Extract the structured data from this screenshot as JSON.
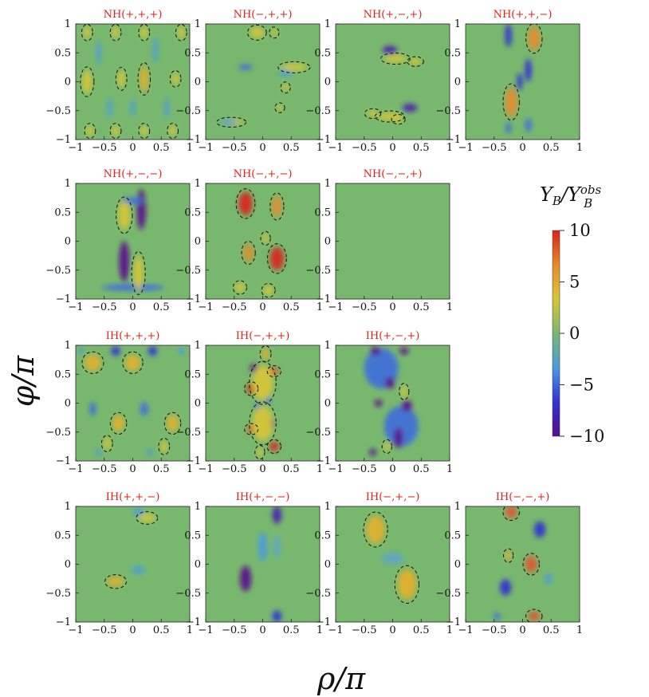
{
  "figure": {
    "colorbar_label": "Y_B/Y_B^obs",
    "xlabel": "ρ/π",
    "ylabel": "φ/π"
  },
  "chart_data": {
    "type": "heatmap",
    "title": "",
    "xlabel": "ρ/π",
    "ylabel": "φ/π",
    "xlim": [
      -1,
      1
    ],
    "ylim": [
      -1,
      1
    ],
    "x_ticks": [
      "−1",
      "−0.5",
      "0",
      "0.5",
      "1"
    ],
    "y_ticks": [
      "1",
      "0.5",
      "0",
      "−0.5",
      "−1"
    ],
    "colorbar": {
      "label": "Y_B/Y_B^obs",
      "range": [
        -10,
        10
      ],
      "ticks": [
        "10",
        "5",
        "0",
        "−5",
        "−10"
      ],
      "colors": [
        "#5a0c8c",
        "#3232d2",
        "#4a9bde",
        "#78b86e",
        "#d8c637",
        "#e88a2a",
        "#d9231c"
      ]
    },
    "contour_note": "dashed contours enclose Y_B/Y_B^obs = 1",
    "panels": [
      {
        "title": "NH(+,+,+)",
        "blobs": [
          [
            -0.8,
            0.85,
            0.06,
            0.1,
            3
          ],
          [
            -0.3,
            0.85,
            0.06,
            0.1,
            3
          ],
          [
            0.2,
            0.85,
            0.06,
            0.1,
            3
          ],
          [
            0.85,
            0.85,
            0.06,
            0.1,
            3
          ],
          [
            -0.8,
            0.0,
            0.08,
            0.2,
            3
          ],
          [
            0.2,
            0.05,
            0.07,
            0.22,
            4
          ],
          [
            -0.2,
            0.05,
            0.06,
            0.15,
            2
          ],
          [
            0.75,
            0.05,
            0.06,
            0.1,
            2
          ],
          [
            -0.75,
            -0.85,
            0.06,
            0.09,
            3
          ],
          [
            -0.3,
            -0.85,
            0.06,
            0.09,
            3
          ],
          [
            0.2,
            -0.85,
            0.06,
            0.09,
            3
          ],
          [
            0.7,
            -0.85,
            0.06,
            0.09,
            3
          ],
          [
            -0.6,
            0.5,
            0.04,
            0.22,
            -3
          ],
          [
            0.4,
            0.55,
            0.04,
            0.22,
            -3
          ],
          [
            -0.4,
            -0.45,
            0.04,
            0.18,
            -3
          ],
          [
            0.6,
            -0.45,
            0.04,
            0.18,
            -3
          ],
          [
            0.0,
            -0.45,
            0.04,
            0.15,
            -2
          ]
        ]
      },
      {
        "title": "NH(−,+,+)",
        "blobs": [
          [
            -0.1,
            0.85,
            0.12,
            0.09,
            3
          ],
          [
            0.2,
            0.85,
            0.05,
            0.06,
            2
          ],
          [
            0.55,
            0.25,
            0.22,
            0.06,
            3
          ],
          [
            0.4,
            -0.1,
            0.05,
            0.06,
            2
          ],
          [
            -0.55,
            -0.7,
            0.2,
            0.05,
            3
          ],
          [
            -0.3,
            0.25,
            0.12,
            0.05,
            -4
          ],
          [
            0.4,
            0.15,
            0.12,
            0.05,
            -3
          ],
          [
            -0.6,
            -0.7,
            0.15,
            0.04,
            -3
          ],
          [
            0.3,
            -0.45,
            0.05,
            0.05,
            2
          ]
        ]
      },
      {
        "title": "NH(+,−,+)",
        "blobs": [
          [
            -0.05,
            0.55,
            0.13,
            0.07,
            -7
          ],
          [
            0.05,
            0.4,
            0.2,
            0.06,
            3
          ],
          [
            0.4,
            0.35,
            0.1,
            0.05,
            2
          ],
          [
            0.3,
            -0.45,
            0.13,
            0.07,
            -7
          ],
          [
            -0.05,
            -0.6,
            0.2,
            0.06,
            3
          ],
          [
            -0.35,
            -0.55,
            0.1,
            0.05,
            2
          ],
          [
            0.1,
            -0.65,
            0.08,
            0.05,
            3
          ]
        ]
      },
      {
        "title": "NH(+,+,−)",
        "blobs": [
          [
            -0.25,
            0.8,
            0.06,
            0.2,
            -6
          ],
          [
            0.2,
            0.75,
            0.1,
            0.2,
            6
          ],
          [
            0.1,
            0.2,
            0.06,
            0.2,
            -5
          ],
          [
            -0.2,
            -0.35,
            0.1,
            0.25,
            6
          ],
          [
            -0.05,
            0.0,
            0.05,
            0.15,
            -5
          ],
          [
            0.1,
            -0.75,
            0.06,
            0.12,
            -4
          ],
          [
            -0.25,
            -0.8,
            0.05,
            0.1,
            -4
          ]
        ]
      },
      {
        "title": "NH(+,−,−)",
        "blobs": [
          [
            0.15,
            0.55,
            0.08,
            0.35,
            -9
          ],
          [
            -0.15,
            -0.35,
            0.09,
            0.35,
            -9
          ],
          [
            0.0,
            -0.8,
            0.55,
            0.06,
            -4
          ],
          [
            0.0,
            0.7,
            0.2,
            0.06,
            -4
          ],
          [
            -0.15,
            0.45,
            0.1,
            0.25,
            3
          ],
          [
            0.1,
            -0.55,
            0.08,
            0.3,
            3
          ]
        ]
      },
      {
        "title": "NH(−,+,−)",
        "blobs": [
          [
            -0.3,
            0.65,
            0.12,
            0.2,
            9
          ],
          [
            0.25,
            0.6,
            0.08,
            0.18,
            5
          ],
          [
            0.25,
            -0.3,
            0.12,
            0.2,
            9
          ],
          [
            -0.25,
            -0.2,
            0.08,
            0.15,
            5
          ],
          [
            -0.4,
            -0.8,
            0.08,
            0.08,
            3
          ],
          [
            0.1,
            -0.85,
            0.08,
            0.08,
            3
          ],
          [
            0.05,
            0.05,
            0.05,
            0.08,
            2
          ]
        ]
      },
      {
        "title": "NH(−,−,+)",
        "blobs": []
      },
      {
        "title": "IH(+,+,+)",
        "blobs": [
          [
            -0.7,
            0.7,
            0.14,
            0.14,
            4
          ],
          [
            0.0,
            0.7,
            0.13,
            0.14,
            4
          ],
          [
            -0.25,
            -0.35,
            0.1,
            0.14,
            4
          ],
          [
            0.7,
            -0.35,
            0.1,
            0.14,
            4
          ],
          [
            -0.3,
            0.9,
            0.08,
            0.08,
            -5
          ],
          [
            0.35,
            0.9,
            0.08,
            0.08,
            -5
          ],
          [
            -0.7,
            -0.1,
            0.06,
            0.12,
            -4
          ],
          [
            0.2,
            -0.1,
            0.07,
            0.12,
            -4
          ],
          [
            -0.45,
            -0.7,
            0.06,
            0.1,
            3
          ],
          [
            0.55,
            -0.75,
            0.06,
            0.1,
            3
          ],
          [
            -0.6,
            -0.85,
            0.05,
            0.06,
            -3
          ],
          [
            0.3,
            -0.85,
            0.05,
            0.06,
            -3
          ],
          [
            0.85,
            0.9,
            0.06,
            0.06,
            -3
          ],
          [
            -0.9,
            0.9,
            0.05,
            0.05,
            -3
          ]
        ]
      },
      {
        "title": "IH(−,+,+)",
        "blobs": [
          [
            -0.15,
            0.6,
            0.07,
            0.08,
            -10
          ],
          [
            0.2,
            0.55,
            0.08,
            0.06,
            8
          ],
          [
            -0.2,
            0.25,
            0.08,
            0.08,
            9
          ],
          [
            0.0,
            0.35,
            0.18,
            0.3,
            3
          ],
          [
            0.15,
            -0.35,
            0.07,
            0.08,
            -10
          ],
          [
            -0.2,
            -0.45,
            0.08,
            0.06,
            8
          ],
          [
            0.2,
            -0.75,
            0.08,
            0.08,
            9
          ],
          [
            0.0,
            -0.35,
            0.18,
            0.3,
            3
          ],
          [
            0.05,
            0.85,
            0.06,
            0.1,
            4
          ],
          [
            -0.05,
            -0.85,
            0.05,
            0.08,
            3
          ],
          [
            0.1,
            0.05,
            0.05,
            0.05,
            -4
          ],
          [
            -0.1,
            -0.05,
            0.05,
            0.05,
            -4
          ]
        ]
      },
      {
        "title": "IH(+,−,+)",
        "blobs": [
          [
            -0.2,
            0.6,
            0.3,
            0.35,
            -4
          ],
          [
            0.15,
            -0.4,
            0.3,
            0.35,
            -4
          ],
          [
            -0.3,
            0.9,
            0.09,
            0.07,
            -9
          ],
          [
            0.2,
            0.9,
            0.08,
            0.06,
            -9
          ],
          [
            -0.05,
            0.35,
            0.08,
            0.1,
            -9
          ],
          [
            -0.25,
            0.0,
            0.07,
            0.06,
            -9
          ],
          [
            0.25,
            -0.05,
            0.09,
            0.1,
            -9
          ],
          [
            0.1,
            -0.6,
            0.08,
            0.18,
            -9
          ],
          [
            -0.35,
            -0.85,
            0.06,
            0.06,
            -9
          ],
          [
            0.2,
            0.2,
            0.05,
            0.1,
            3
          ],
          [
            -0.1,
            -0.75,
            0.05,
            0.08,
            2
          ]
        ]
      },
      {
        "title": "IH(+,+,−)",
        "blobs": [
          [
            0.25,
            0.8,
            0.14,
            0.07,
            3
          ],
          [
            -0.3,
            -0.3,
            0.14,
            0.08,
            4
          ],
          [
            0.1,
            0.9,
            0.1,
            0.06,
            -3
          ],
          [
            0.1,
            -0.1,
            0.12,
            0.06,
            -3
          ]
        ]
      },
      {
        "title": "IH(+,−,−)",
        "blobs": [
          [
            -0.3,
            -0.25,
            0.1,
            0.22,
            -9
          ],
          [
            0.25,
            0.85,
            0.08,
            0.15,
            -8
          ],
          [
            0.25,
            -0.9,
            0.08,
            0.1,
            -6
          ],
          [
            0.0,
            0.3,
            0.08,
            0.25,
            -2
          ],
          [
            0.25,
            0.3,
            0.06,
            0.2,
            -1
          ]
        ]
      },
      {
        "title": "IH(−,+,−)",
        "blobs": [
          [
            -0.3,
            0.6,
            0.16,
            0.24,
            4
          ],
          [
            0.25,
            -0.35,
            0.16,
            0.26,
            4
          ],
          [
            0.0,
            0.1,
            0.2,
            0.1,
            -1
          ]
        ]
      },
      {
        "title": "IH(−,−,+)",
        "blobs": [
          [
            -0.2,
            0.9,
            0.1,
            0.1,
            7
          ],
          [
            0.2,
            -0.9,
            0.1,
            0.08,
            7
          ],
          [
            0.15,
            0.0,
            0.1,
            0.14,
            8
          ],
          [
            -0.25,
            0.15,
            0.05,
            0.08,
            4
          ],
          [
            0.3,
            0.6,
            0.1,
            0.14,
            -6
          ],
          [
            -0.3,
            -0.4,
            0.1,
            0.14,
            -6
          ],
          [
            0.45,
            -0.25,
            0.06,
            0.1,
            -3
          ],
          [
            -0.45,
            -0.9,
            0.06,
            0.06,
            -4
          ]
        ]
      }
    ]
  }
}
